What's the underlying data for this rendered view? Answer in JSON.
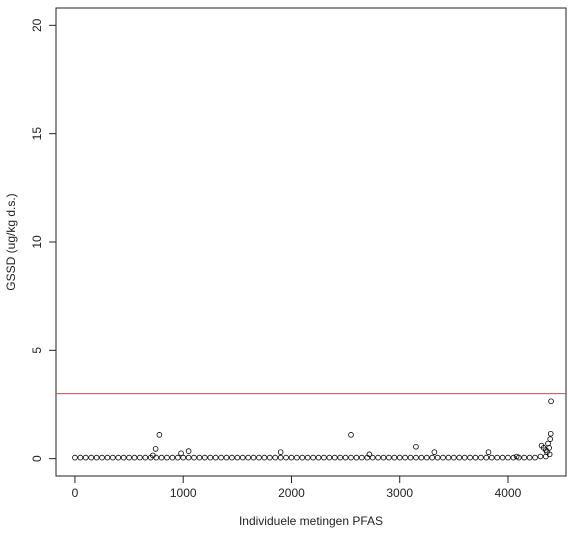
{
  "chart_data": {
    "type": "scatter",
    "xlabel": "Individuele metingen PFAS",
    "ylabel": "GSSD (ug/kg d.s.)",
    "xlim": [
      -175,
      4536
    ],
    "ylim": [
      -0.8,
      20.8
    ],
    "xticks": [
      0,
      1000,
      2000,
      3000,
      4000
    ],
    "yticks": [
      0,
      5,
      10,
      15,
      20
    ],
    "hline": 3,
    "hline_color": "#c0504d",
    "color": "#000000",
    "x": [
      0,
      50,
      100,
      150,
      200,
      250,
      300,
      350,
      400,
      450,
      500,
      550,
      600,
      650,
      700,
      750,
      800,
      850,
      900,
      950,
      1000,
      1050,
      1100,
      1150,
      1200,
      1250,
      1300,
      1350,
      1400,
      1450,
      1500,
      1550,
      1600,
      1650,
      1700,
      1750,
      1800,
      1850,
      1900,
      1950,
      2000,
      2050,
      2100,
      2150,
      2200,
      2250,
      2300,
      2350,
      2400,
      2450,
      2500,
      2550,
      2600,
      2650,
      2700,
      2750,
      2800,
      2850,
      2900,
      2950,
      3000,
      3050,
      3100,
      3150,
      3200,
      3250,
      3300,
      3350,
      3400,
      3450,
      3500,
      3550,
      3600,
      3650,
      3700,
      3750,
      3800,
      3850,
      3900,
      3950,
      4000,
      4050,
      4100,
      4150,
      4200,
      4250,
      4300,
      4350,
      720,
      745,
      780,
      980,
      1050,
      1900,
      2550,
      2720,
      3150,
      3320,
      3820,
      4080,
      4310,
      4330,
      4350,
      4360,
      4370,
      4380,
      4390,
      4395,
      4398,
      4385
    ],
    "values": [
      0.05,
      0.05,
      0.05,
      0.05,
      0.05,
      0.05,
      0.05,
      0.05,
      0.05,
      0.05,
      0.05,
      0.05,
      0.05,
      0.05,
      0.05,
      0.05,
      0.05,
      0.05,
      0.05,
      0.05,
      0.05,
      0.05,
      0.05,
      0.05,
      0.05,
      0.05,
      0.05,
      0.05,
      0.05,
      0.05,
      0.05,
      0.05,
      0.05,
      0.05,
      0.05,
      0.05,
      0.05,
      0.05,
      0.05,
      0.05,
      0.05,
      0.05,
      0.05,
      0.05,
      0.05,
      0.05,
      0.05,
      0.05,
      0.05,
      0.05,
      0.05,
      0.05,
      0.05,
      0.05,
      0.05,
      0.05,
      0.05,
      0.05,
      0.05,
      0.05,
      0.05,
      0.05,
      0.05,
      0.05,
      0.05,
      0.05,
      0.05,
      0.05,
      0.05,
      0.05,
      0.05,
      0.05,
      0.05,
      0.05,
      0.05,
      0.05,
      0.05,
      0.05,
      0.05,
      0.05,
      0.05,
      0.05,
      0.05,
      0.05,
      0.05,
      0.05,
      0.1,
      0.1,
      0.15,
      0.45,
      1.1,
      0.25,
      0.35,
      0.3,
      1.1,
      0.2,
      0.55,
      0.3,
      0.3,
      0.1,
      0.6,
      0.5,
      0.4,
      0.3,
      0.7,
      0.5,
      0.9,
      1.15,
      2.65,
      0.2
    ]
  }
}
